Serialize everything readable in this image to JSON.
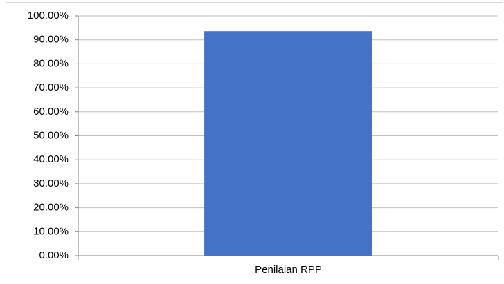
{
  "chart_data": {
    "type": "bar",
    "categories": [
      "Penilaian RPP"
    ],
    "values": [
      93.6
    ],
    "color": "#4472c4",
    "ylim": [
      0,
      100
    ],
    "yticks": [
      {
        "value": 0,
        "label": "0.00%"
      },
      {
        "value": 10,
        "label": "10.00%"
      },
      {
        "value": 20,
        "label": "20.00%"
      },
      {
        "value": 30,
        "label": "30.00%"
      },
      {
        "value": 40,
        "label": "40.00%"
      },
      {
        "value": 50,
        "label": "50.00%"
      },
      {
        "value": 60,
        "label": "60.00%"
      },
      {
        "value": 70,
        "label": "70.00%"
      },
      {
        "value": 80,
        "label": "80.00%"
      },
      {
        "value": 90,
        "label": "90.00%"
      },
      {
        "value": 100,
        "label": "100.00%"
      }
    ],
    "grid": true
  }
}
